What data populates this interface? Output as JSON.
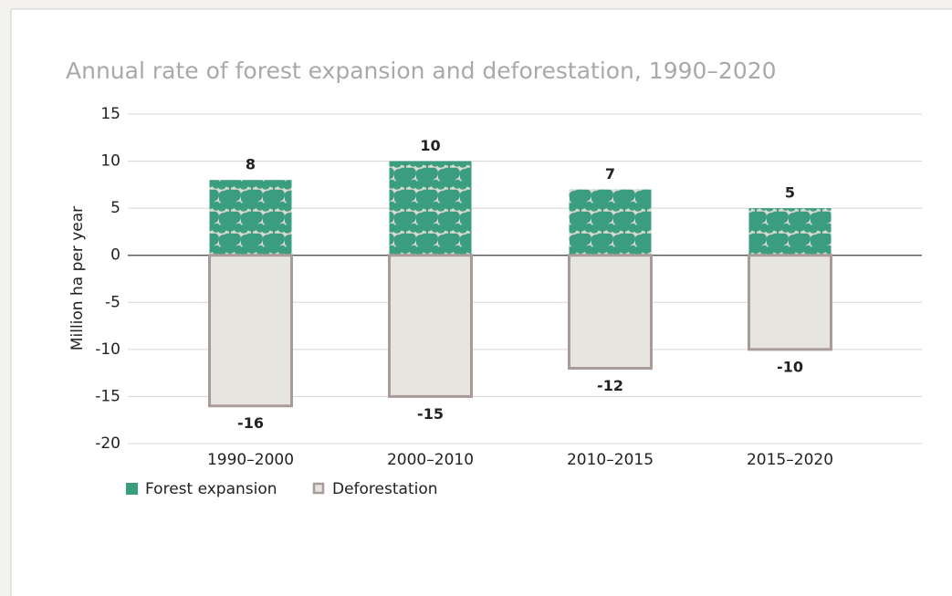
{
  "chart_data": {
    "type": "bar",
    "title": "Annual rate of forest expansion and deforestation, 1990–2020",
    "y_label": "Million ha per year",
    "categories": [
      "1990–2000",
      "2000–2010",
      "2010–2015",
      "2015–2020"
    ],
    "series": [
      {
        "name": "Forest expansion",
        "color": "#3a9d7f",
        "values": [
          8,
          10,
          7,
          5
        ]
      },
      {
        "name": "Deforestation",
        "color": "#e7e5e0",
        "edge_color": "#a99c98",
        "values": [
          -16,
          -15,
          -12,
          -10
        ]
      }
    ],
    "ylim": [
      -20,
      15
    ],
    "yticks": [
      -20,
      -15,
      -10,
      -5,
      0,
      5,
      10,
      15
    ],
    "grid": true
  }
}
